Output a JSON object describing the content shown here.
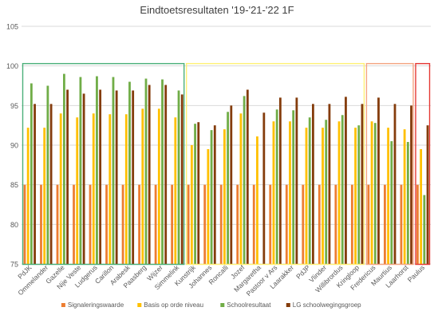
{
  "chart_data": {
    "type": "bar",
    "title": "Eindtoetsresultaten '19-'21-'22   1F",
    "xlabel": "",
    "ylabel": "",
    "ylim": [
      75,
      105
    ],
    "yticks": [
      75,
      80,
      85,
      90,
      95,
      100,
      105
    ],
    "grid": true,
    "legend_position": "bottom",
    "categories": [
      "PdJK",
      "Ommelander",
      "Gazelle",
      "Nije Veste",
      "Ludgerus",
      "Carillon",
      "Arabesk",
      "Paasberg",
      "Wijzer",
      "Simmelink",
      "Kunstrijk",
      "Johannes",
      "Roncalli",
      "Jozef",
      "Margaretha",
      "Pastoor v Ars",
      "Laarakker",
      "PdJP",
      "Vlinder",
      "Willibrordus",
      "Kringloop",
      "Fredericus",
      "Maurtius",
      "Laarhorst",
      "Paulus"
    ],
    "series": [
      {
        "name": "Signaleringswaarde",
        "color": "#ED7D31",
        "values": [
          85,
          85,
          85,
          85,
          85,
          85,
          85,
          85,
          85,
          85,
          85,
          85,
          85,
          85,
          85,
          85,
          85,
          85,
          85,
          85,
          85,
          85,
          85,
          85,
          85
        ]
      },
      {
        "name": "Basis op orde niveau",
        "color": "#FFC000",
        "values": [
          92.2,
          92.2,
          94.0,
          93.5,
          94.0,
          93.9,
          93.9,
          94.6,
          94.6,
          93.5,
          90.0,
          89.5,
          92.0,
          94.0,
          91.1,
          93.0,
          93.0,
          92.2,
          92.2,
          93.0,
          92.2,
          93.0,
          92.2,
          92.0,
          89.5
        ]
      },
      {
        "name": "Schoolresultaat",
        "color": "#70AD47",
        "values": [
          97.8,
          97.5,
          99.0,
          98.6,
          98.7,
          98.6,
          98.0,
          98.4,
          98.3,
          96.9,
          92.7,
          91.9,
          94.2,
          96.2,
          null,
          94.5,
          94.4,
          93.5,
          93.2,
          93.8,
          92.5,
          92.8,
          90.5,
          90.4,
          83.7
        ]
      },
      {
        "name": "LG schoolwegingsgroep",
        "color": "#843C0C",
        "values": [
          95.2,
          95.2,
          97.0,
          96.5,
          97.0,
          96.9,
          96.9,
          97.6,
          97.6,
          96.4,
          92.9,
          92.5,
          95.0,
          97.0,
          94.1,
          96.0,
          96.0,
          95.2,
          95.2,
          96.1,
          95.2,
          96.0,
          95.2,
          95.0,
          92.5
        ]
      }
    ],
    "group_boxes": [
      {
        "from": "PdJK",
        "to": "Simmelink",
        "color": "#4CB07A"
      },
      {
        "from": "Kunstrijk",
        "to": "Kringloop",
        "color": "#FFF176"
      },
      {
        "from": "Fredericus",
        "to": "Laarhorst",
        "color": "#F4A582"
      },
      {
        "from": "Paulus",
        "to": "Paulus",
        "color": "#E53935"
      }
    ]
  }
}
